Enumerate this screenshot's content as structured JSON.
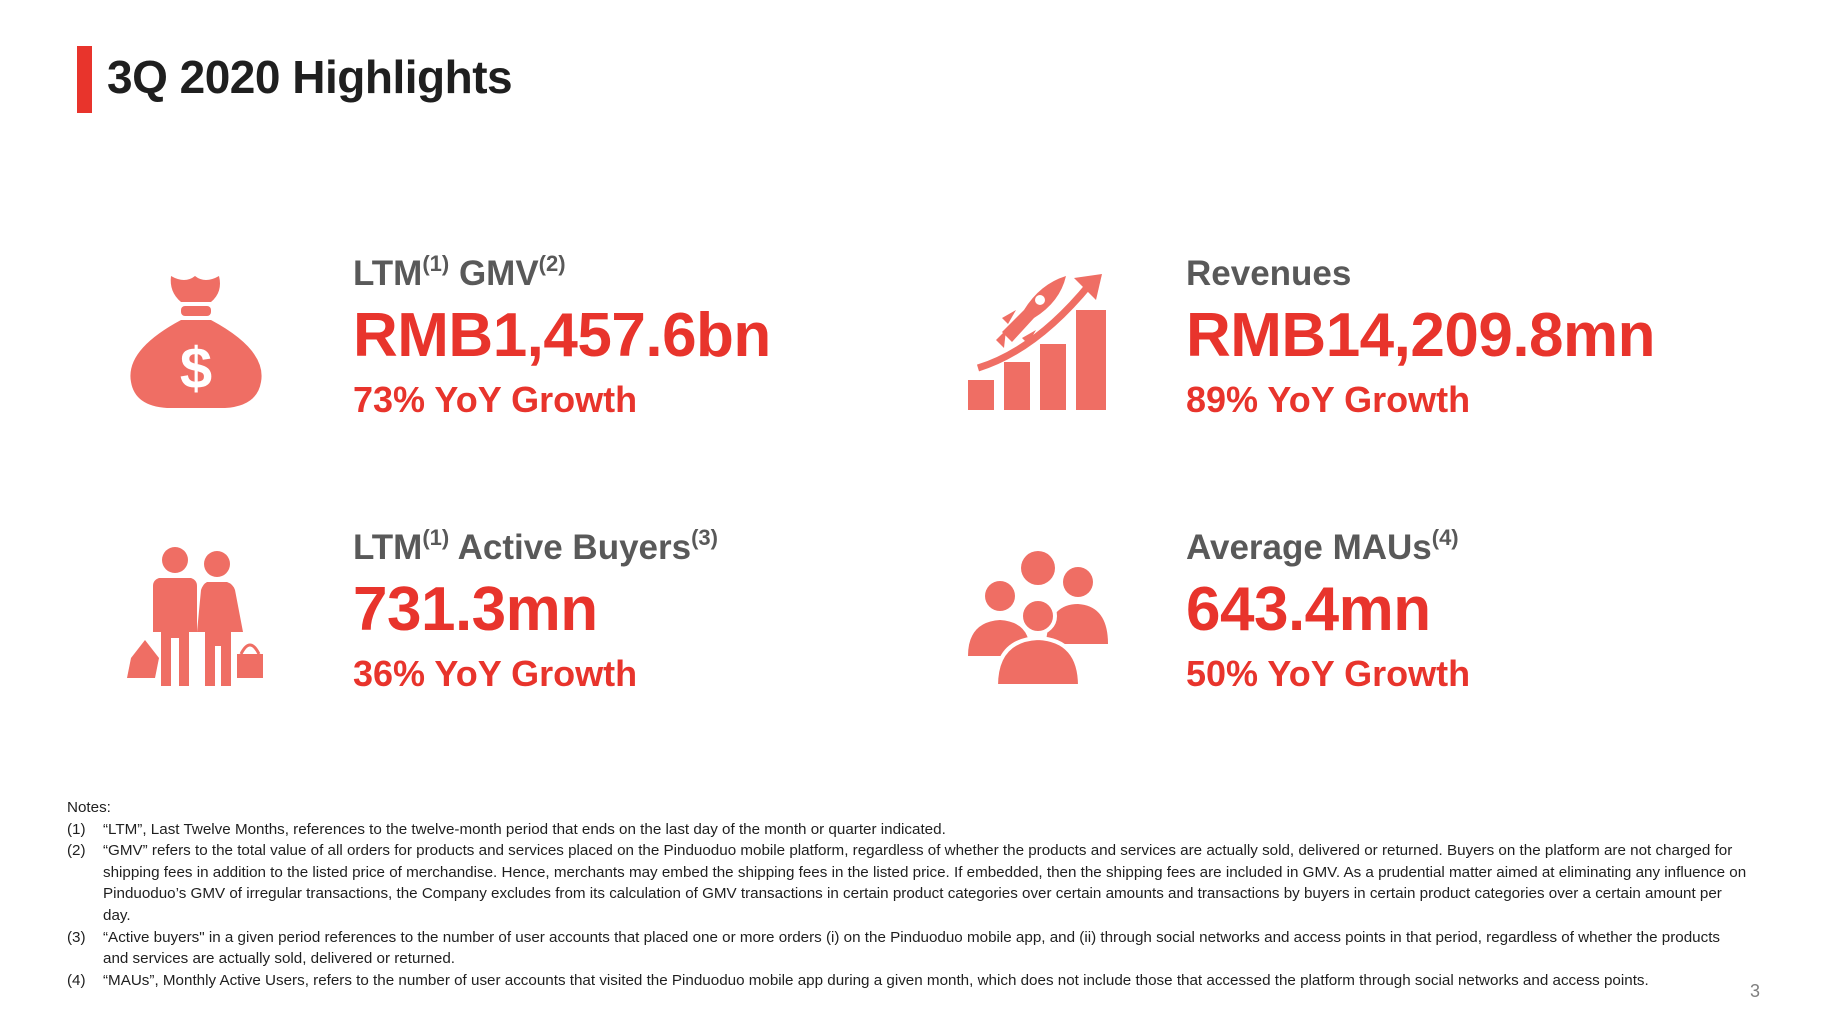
{
  "title": "3Q 2020 Highlights",
  "metrics": [
    {
      "label": "LTM",
      "sup1": "(1)",
      "label2": " GMV",
      "sup2": "(2)",
      "value": "RMB1,457.6bn",
      "growth": "73% YoY Growth",
      "icon": "money-bag-icon"
    },
    {
      "label": "Revenues",
      "value": "RMB14,209.8mn",
      "growth": "89% YoY Growth",
      "icon": "rocket-growth-chart-icon"
    },
    {
      "label": "LTM",
      "sup1": "(1)",
      "label2": " Active Buyers",
      "sup2": "(3)",
      "value": "731.3mn",
      "growth": "36% YoY Growth",
      "icon": "shoppers-icon"
    },
    {
      "label": "Average MAUs",
      "sup1": "(4)",
      "value": "643.4mn",
      "growth": "50% YoY Growth",
      "icon": "user-group-icon"
    }
  ],
  "notes": {
    "heading": "Notes:",
    "items": [
      {
        "num": "(1)",
        "text": "“LTM”, Last Twelve Months, references to the twelve-month period that ends on the last day of the month or quarter indicated."
      },
      {
        "num": "(2)",
        "text": "“GMV” refers to the total value of all orders for products and services placed on the Pinduoduo mobile platform, regardless of whether the products and services are actually sold, delivered or returned. Buyers on the platform are not charged for shipping fees in addition to the listed price of merchandise. Hence, merchants may embed the shipping fees in the listed price. If embedded, then the shipping fees are included in GMV. As a prudential matter aimed at eliminating any influence on Pinduoduo’s GMV of irregular transactions, the Company excludes from its calculation of GMV transactions in certain product categories over certain amounts and transactions by buyers in certain product categories over a certain amount per day."
      },
      {
        "num": "(3)",
        "text": "“Active buyers\" in a given period references to the number of user accounts that placed one or more orders (i) on the Pinduoduo mobile app, and (ii) through social networks and access points in that period, regardless of whether the products and services are actually sold, delivered or returned."
      },
      {
        "num": "(4)",
        "text": "“MAUs”, Monthly Active Users, refers to the number of user accounts that visited the Pinduoduo mobile app during a given month, which does not include those that accessed the platform through social networks and access points."
      }
    ]
  },
  "page_number": "3",
  "colors": {
    "accent": "#e8342c",
    "icon": "#ef6e64",
    "label": "#595959"
  }
}
